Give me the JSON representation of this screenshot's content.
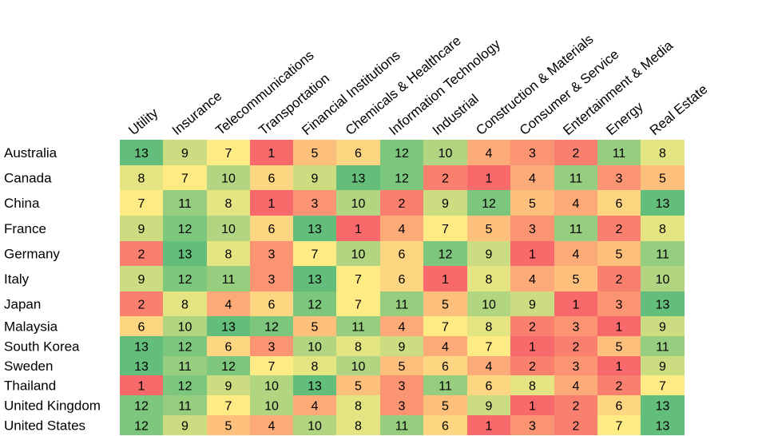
{
  "chart_data": {
    "type": "heatmap",
    "columns": [
      "Utility",
      "Insurance",
      "Telecommunications",
      "Transportation",
      "Financial Institutions",
      "Chemicals & Healthcare",
      "Information Technology",
      "Industrial",
      "Construction & Materials",
      "Consumer & Service",
      "Entertainment & Media",
      "Energy",
      "Real Estate"
    ],
    "rows": [
      "Australia",
      "Canada",
      "China",
      "France",
      "Germany",
      "Italy",
      "Japan",
      "Malaysia",
      "South Korea",
      "Sweden",
      "Thailand",
      "United Kingdom",
      "United States"
    ],
    "values": [
      [
        13,
        9,
        7,
        1,
        5,
        6,
        12,
        10,
        4,
        3,
        2,
        11,
        8
      ],
      [
        8,
        7,
        10,
        6,
        9,
        13,
        12,
        2,
        1,
        4,
        11,
        3,
        5
      ],
      [
        7,
        11,
        8,
        1,
        3,
        10,
        2,
        9,
        12,
        5,
        4,
        6,
        13
      ],
      [
        9,
        12,
        10,
        6,
        13,
        1,
        4,
        7,
        5,
        3,
        11,
        2,
        8
      ],
      [
        2,
        13,
        8,
        3,
        7,
        10,
        6,
        12,
        9,
        1,
        4,
        5,
        11
      ],
      [
        9,
        12,
        11,
        3,
        13,
        7,
        6,
        1,
        8,
        4,
        5,
        2,
        10
      ],
      [
        2,
        8,
        4,
        6,
        12,
        7,
        11,
        5,
        10,
        9,
        1,
        3,
        13
      ],
      [
        6,
        10,
        13,
        12,
        5,
        11,
        4,
        7,
        8,
        2,
        3,
        1,
        9
      ],
      [
        13,
        12,
        6,
        3,
        10,
        8,
        9,
        4,
        7,
        1,
        2,
        5,
        11
      ],
      [
        13,
        11,
        12,
        7,
        8,
        10,
        5,
        6,
        4,
        2,
        3,
        1,
        9
      ],
      [
        1,
        12,
        9,
        10,
        13,
        5,
        3,
        11,
        6,
        8,
        4,
        2,
        7
      ],
      [
        12,
        11,
        7,
        10,
        4,
        8,
        3,
        5,
        9,
        1,
        2,
        6,
        13
      ],
      [
        12,
        9,
        5,
        4,
        10,
        8,
        11,
        6,
        1,
        3,
        2,
        7,
        13
      ]
    ],
    "value_range": [
      1,
      13
    ],
    "colors": {
      "low": "#f8696b",
      "mid": "#ffeb84",
      "high": "#63be7b"
    },
    "legend": "none",
    "grid": false
  }
}
